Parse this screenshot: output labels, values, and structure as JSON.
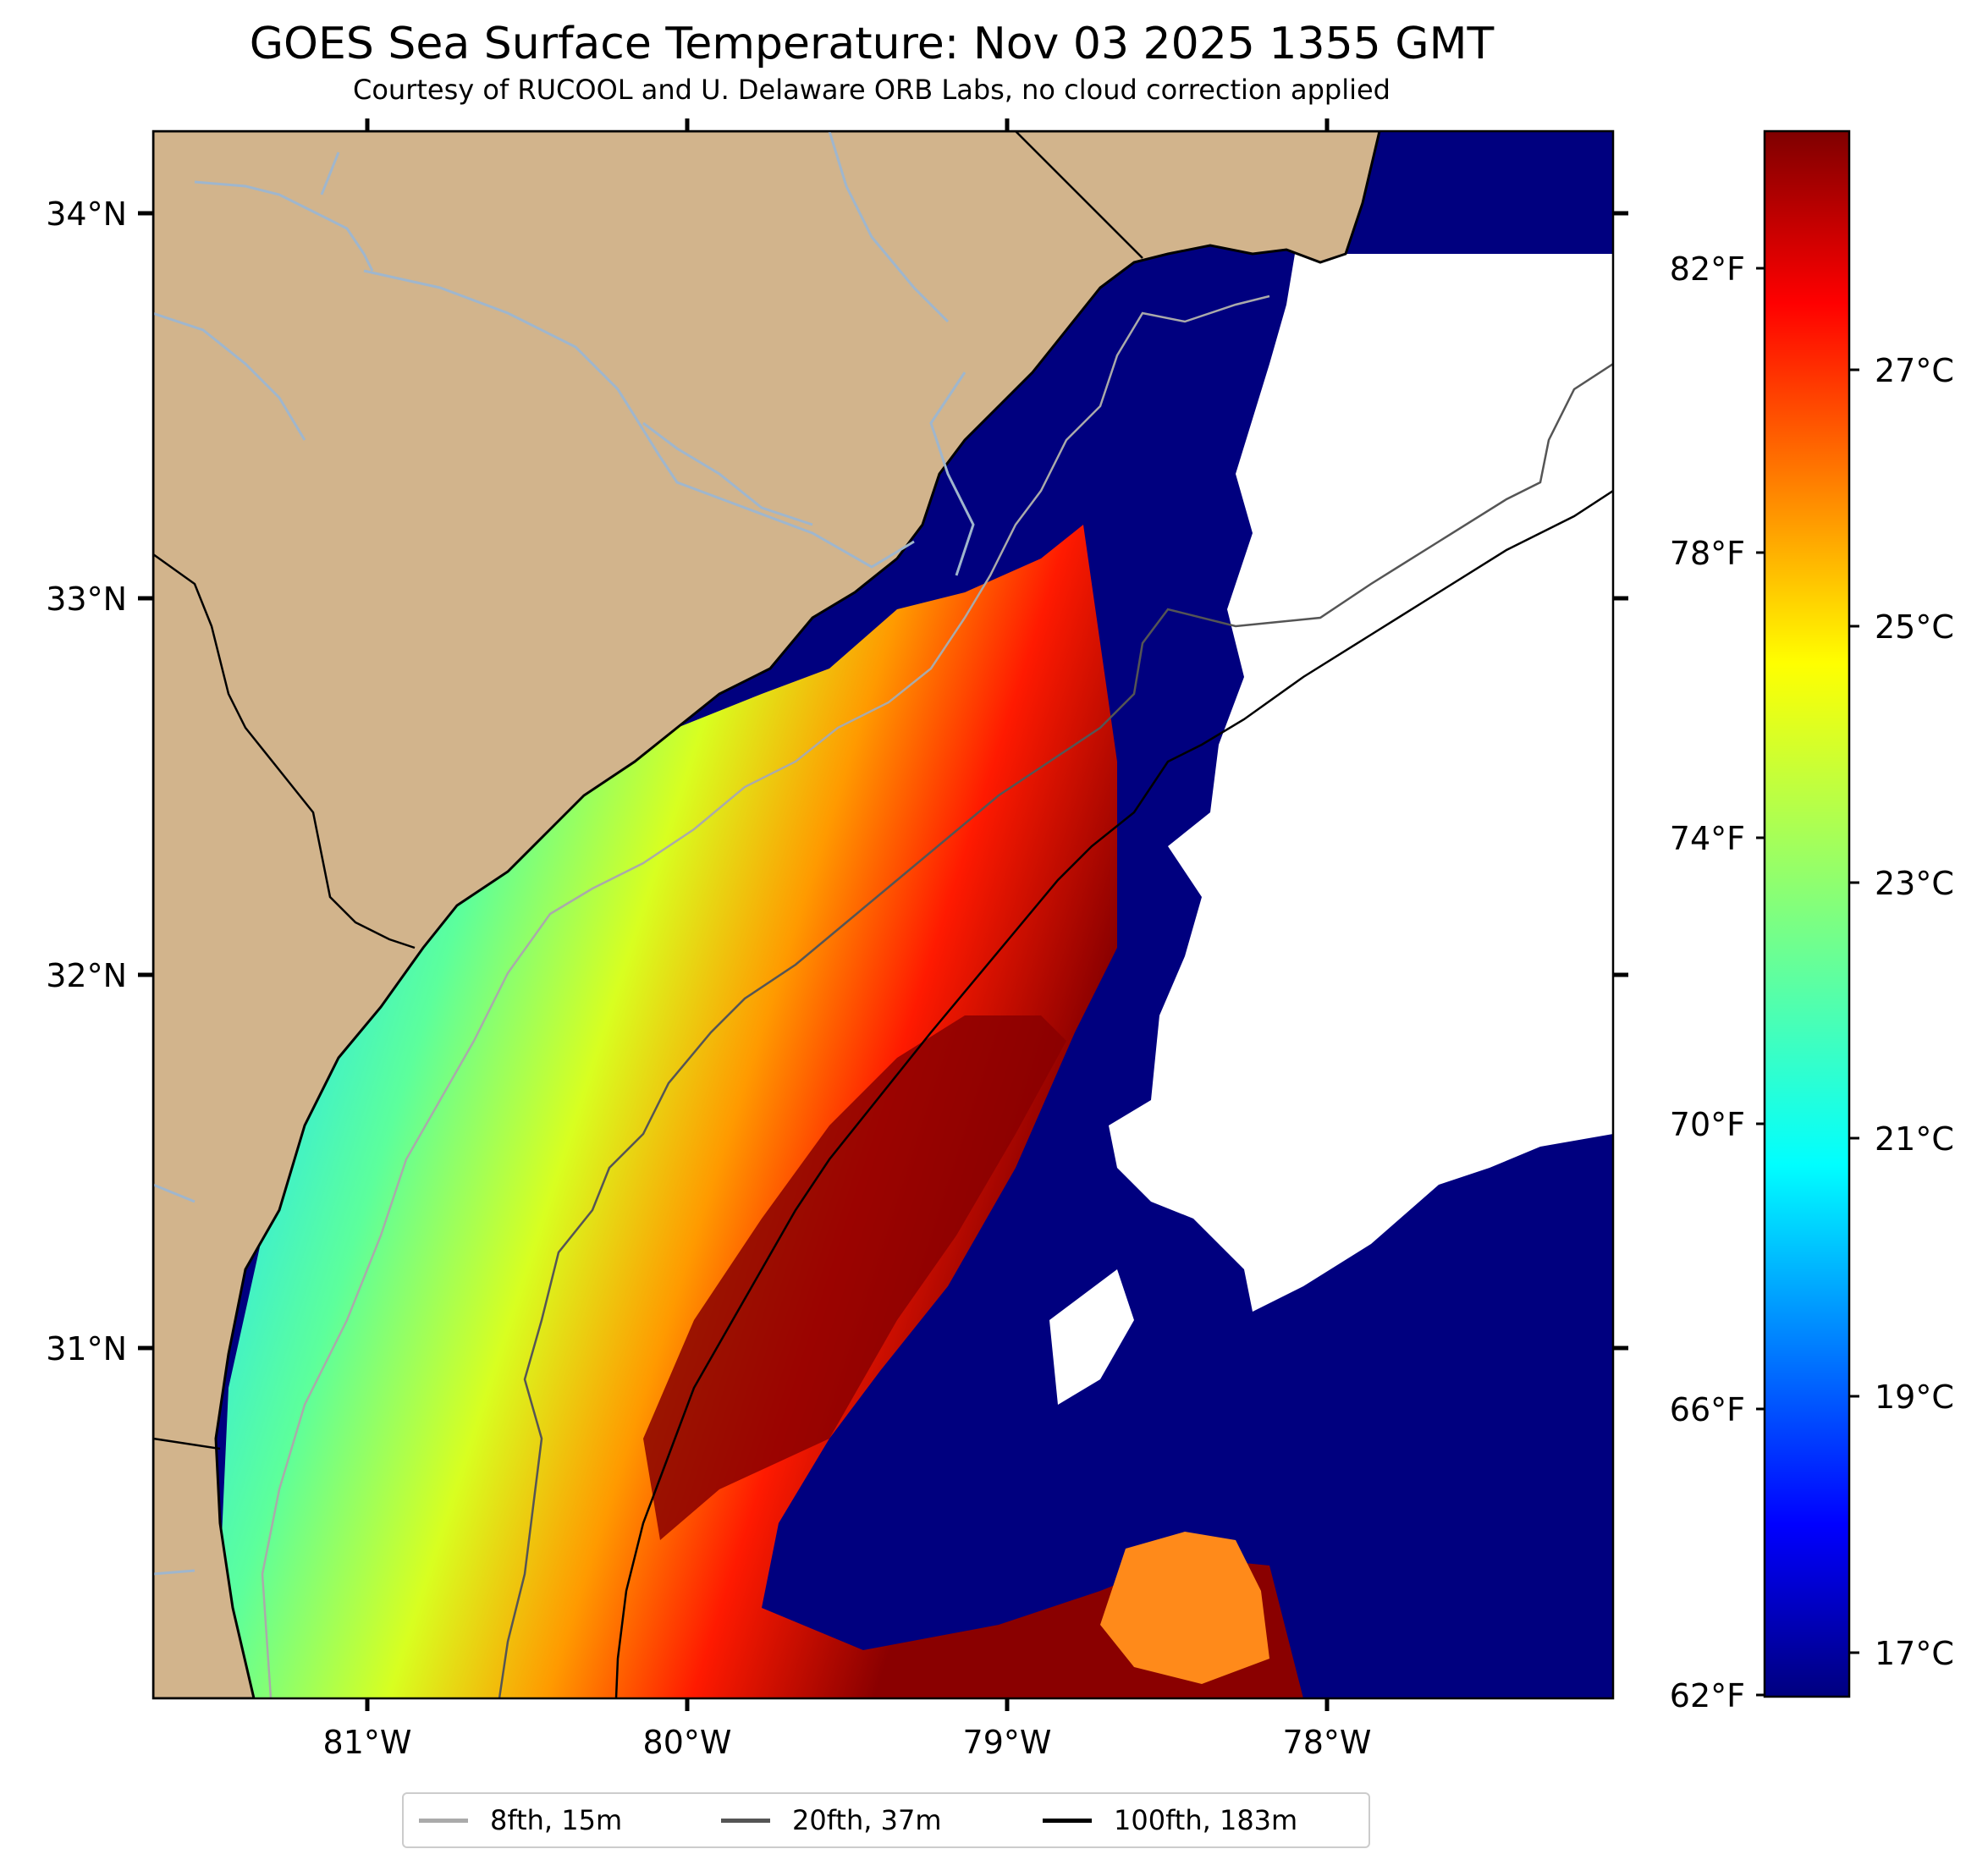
{
  "title": "GOES Sea Surface Temperature: Nov 03 2025 1355 GMT",
  "subtitle": "Courtesy of RUCOOL and U. Delaware ORB Labs, no cloud correction applied",
  "map": {
    "lon_ticks": [
      "81°W",
      "80°W",
      "79°W",
      "78°W"
    ],
    "lat_ticks": [
      "34°N",
      "33°N",
      "32°N",
      "31°N"
    ],
    "colors": {
      "land": "#d2b48c",
      "no_data": "#ffffff",
      "coastline": "#000000",
      "rivers": "#9fb6cd"
    }
  },
  "colorbar": {
    "fahrenheit_ticks": [
      "82°F",
      "78°F",
      "74°F",
      "70°F",
      "66°F",
      "62°F"
    ],
    "celsius_ticks": [
      "27°C",
      "25°C",
      "23°C",
      "21°C",
      "19°C",
      "17°C"
    ],
    "colormap": "jet",
    "range_c": [
      16.7,
      28.3
    ]
  },
  "legend": {
    "items": [
      {
        "label": "8fth, 15m",
        "color": "#aaaaaa"
      },
      {
        "label": "20fth, 37m",
        "color": "#555555"
      },
      {
        "label": "100fth, 183m",
        "color": "#000000"
      }
    ]
  }
}
